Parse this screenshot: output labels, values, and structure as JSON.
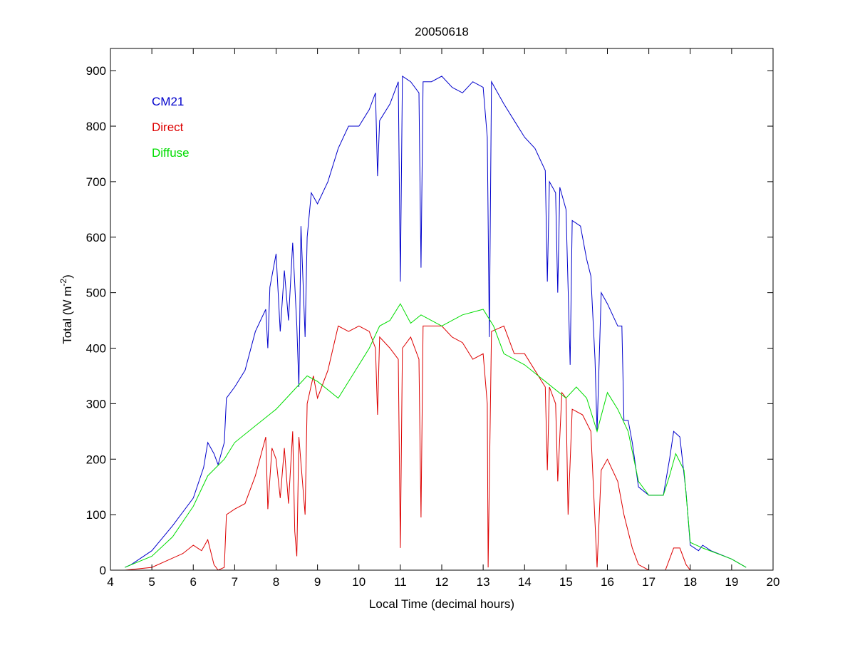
{
  "chart_data": {
    "type": "line",
    "title": "20050618",
    "xlabel": "Local Time (decimal hours)",
    "ylabel": {
      "main": "Total (W m",
      "sup": "-2",
      "close": ")"
    },
    "xlim": [
      4,
      20
    ],
    "ylim": [
      0,
      940
    ],
    "xticks": [
      4,
      5,
      6,
      7,
      8,
      9,
      10,
      11,
      12,
      13,
      14,
      15,
      16,
      17,
      18,
      19,
      20
    ],
    "yticks": [
      0,
      100,
      200,
      300,
      400,
      500,
      600,
      700,
      800,
      900
    ],
    "grid": false,
    "legend_position": "top-left",
    "series": [
      {
        "name": "CM21",
        "color": "#0000cc",
        "points": [
          [
            4.35,
            5
          ],
          [
            4.5,
            10
          ],
          [
            5,
            35
          ],
          [
            5.5,
            80
          ],
          [
            6,
            130
          ],
          [
            6.25,
            185
          ],
          [
            6.35,
            230
          ],
          [
            6.5,
            210
          ],
          [
            6.6,
            190
          ],
          [
            6.75,
            230
          ],
          [
            6.8,
            310
          ],
          [
            7,
            330
          ],
          [
            7.25,
            360
          ],
          [
            7.5,
            430
          ],
          [
            7.75,
            470
          ],
          [
            7.8,
            400
          ],
          [
            7.85,
            510
          ],
          [
            8,
            570
          ],
          [
            8.1,
            430
          ],
          [
            8.2,
            540
          ],
          [
            8.3,
            450
          ],
          [
            8.4,
            590
          ],
          [
            8.5,
            440
          ],
          [
            8.55,
            330
          ],
          [
            8.6,
            620
          ],
          [
            8.7,
            420
          ],
          [
            8.75,
            600
          ],
          [
            8.85,
            680
          ],
          [
            9,
            660
          ],
          [
            9.25,
            700
          ],
          [
            9.5,
            760
          ],
          [
            9.75,
            800
          ],
          [
            10,
            800
          ],
          [
            10.25,
            830
          ],
          [
            10.4,
            860
          ],
          [
            10.45,
            710
          ],
          [
            10.5,
            810
          ],
          [
            10.75,
            840
          ],
          [
            10.95,
            880
          ],
          [
            11,
            520
          ],
          [
            11.05,
            890
          ],
          [
            11.25,
            880
          ],
          [
            11.45,
            860
          ],
          [
            11.5,
            545
          ],
          [
            11.55,
            880
          ],
          [
            11.75,
            880
          ],
          [
            12,
            890
          ],
          [
            12.25,
            870
          ],
          [
            12.5,
            860
          ],
          [
            12.75,
            880
          ],
          [
            13,
            870
          ],
          [
            13.1,
            780
          ],
          [
            13.15,
            420
          ],
          [
            13.2,
            880
          ],
          [
            13.5,
            840
          ],
          [
            13.75,
            810
          ],
          [
            14,
            780
          ],
          [
            14.25,
            760
          ],
          [
            14.5,
            720
          ],
          [
            14.55,
            520
          ],
          [
            14.6,
            700
          ],
          [
            14.75,
            680
          ],
          [
            14.8,
            500
          ],
          [
            14.85,
            690
          ],
          [
            15,
            650
          ],
          [
            15.1,
            370
          ],
          [
            15.15,
            630
          ],
          [
            15.35,
            620
          ],
          [
            15.5,
            560
          ],
          [
            15.6,
            530
          ],
          [
            15.7,
            380
          ],
          [
            15.75,
            250
          ],
          [
            15.85,
            500
          ],
          [
            16,
            480
          ],
          [
            16.25,
            440
          ],
          [
            16.35,
            440
          ],
          [
            16.4,
            270
          ],
          [
            16.5,
            270
          ],
          [
            16.6,
            230
          ],
          [
            16.75,
            150
          ],
          [
            17,
            135
          ],
          [
            17.35,
            135
          ],
          [
            17.5,
            200
          ],
          [
            17.6,
            250
          ],
          [
            17.75,
            240
          ],
          [
            17.9,
            140
          ],
          [
            18,
            45
          ],
          [
            18.2,
            35
          ],
          [
            18.3,
            45
          ],
          [
            18.5,
            35
          ],
          [
            19,
            20
          ],
          [
            19.35,
            5
          ]
        ]
      },
      {
        "name": "Direct",
        "color": "#dd0000",
        "points": [
          [
            4.35,
            0
          ],
          [
            5,
            5
          ],
          [
            5.75,
            30
          ],
          [
            6,
            45
          ],
          [
            6.2,
            35
          ],
          [
            6.35,
            55
          ],
          [
            6.5,
            10
          ],
          [
            6.6,
            0
          ],
          [
            6.75,
            5
          ],
          [
            6.8,
            100
          ],
          [
            7,
            110
          ],
          [
            7.25,
            120
          ],
          [
            7.5,
            170
          ],
          [
            7.75,
            240
          ],
          [
            7.8,
            110
          ],
          [
            7.9,
            220
          ],
          [
            8,
            200
          ],
          [
            8.1,
            130
          ],
          [
            8.2,
            220
          ],
          [
            8.3,
            120
          ],
          [
            8.4,
            250
          ],
          [
            8.45,
            70
          ],
          [
            8.5,
            25
          ],
          [
            8.55,
            240
          ],
          [
            8.7,
            100
          ],
          [
            8.75,
            300
          ],
          [
            8.9,
            350
          ],
          [
            9,
            310
          ],
          [
            9.25,
            360
          ],
          [
            9.5,
            440
          ],
          [
            9.75,
            430
          ],
          [
            10,
            440
          ],
          [
            10.25,
            430
          ],
          [
            10.4,
            400
          ],
          [
            10.45,
            280
          ],
          [
            10.5,
            420
          ],
          [
            10.75,
            400
          ],
          [
            10.95,
            380
          ],
          [
            11,
            40
          ],
          [
            11.05,
            400
          ],
          [
            11.25,
            420
          ],
          [
            11.45,
            380
          ],
          [
            11.5,
            95
          ],
          [
            11.55,
            440
          ],
          [
            11.75,
            440
          ],
          [
            12,
            440
          ],
          [
            12.25,
            420
          ],
          [
            12.5,
            410
          ],
          [
            12.75,
            380
          ],
          [
            13,
            390
          ],
          [
            13.1,
            300
          ],
          [
            13.12,
            5
          ],
          [
            13.2,
            430
          ],
          [
            13.5,
            440
          ],
          [
            13.75,
            390
          ],
          [
            14,
            390
          ],
          [
            14.25,
            360
          ],
          [
            14.5,
            330
          ],
          [
            14.55,
            180
          ],
          [
            14.6,
            330
          ],
          [
            14.75,
            300
          ],
          [
            14.8,
            160
          ],
          [
            14.9,
            320
          ],
          [
            15,
            310
          ],
          [
            15.05,
            100
          ],
          [
            15.15,
            290
          ],
          [
            15.4,
            280
          ],
          [
            15.6,
            250
          ],
          [
            15.75,
            5
          ],
          [
            15.85,
            180
          ],
          [
            16,
            200
          ],
          [
            16.25,
            160
          ],
          [
            16.4,
            100
          ],
          [
            16.6,
            40
          ],
          [
            16.75,
            10
          ],
          [
            17,
            0
          ],
          [
            17.4,
            0
          ],
          [
            17.6,
            40
          ],
          [
            17.75,
            40
          ],
          [
            17.9,
            10
          ],
          [
            18,
            0
          ],
          [
            18.35,
            0
          ]
        ]
      },
      {
        "name": "Diffuse",
        "color": "#00dd00",
        "points": [
          [
            4.35,
            5
          ],
          [
            5,
            25
          ],
          [
            5.5,
            60
          ],
          [
            6,
            115
          ],
          [
            6.35,
            170
          ],
          [
            6.75,
            200
          ],
          [
            7,
            230
          ],
          [
            7.5,
            260
          ],
          [
            8,
            290
          ],
          [
            8.5,
            330
          ],
          [
            8.75,
            350
          ],
          [
            9,
            340
          ],
          [
            9.5,
            310
          ],
          [
            10,
            370
          ],
          [
            10.25,
            400
          ],
          [
            10.5,
            440
          ],
          [
            10.75,
            450
          ],
          [
            11,
            480
          ],
          [
            11.25,
            445
          ],
          [
            11.5,
            460
          ],
          [
            12,
            440
          ],
          [
            12.5,
            460
          ],
          [
            13,
            470
          ],
          [
            13.25,
            440
          ],
          [
            13.5,
            390
          ],
          [
            14,
            370
          ],
          [
            14.5,
            340
          ],
          [
            15,
            310
          ],
          [
            15.25,
            330
          ],
          [
            15.5,
            310
          ],
          [
            15.75,
            250
          ],
          [
            16,
            320
          ],
          [
            16.25,
            290
          ],
          [
            16.5,
            250
          ],
          [
            16.75,
            160
          ],
          [
            17,
            135
          ],
          [
            17.35,
            135
          ],
          [
            17.5,
            170
          ],
          [
            17.65,
            210
          ],
          [
            17.85,
            180
          ],
          [
            18,
            50
          ],
          [
            18.3,
            40
          ],
          [
            19,
            20
          ],
          [
            19.35,
            5
          ]
        ]
      }
    ]
  }
}
